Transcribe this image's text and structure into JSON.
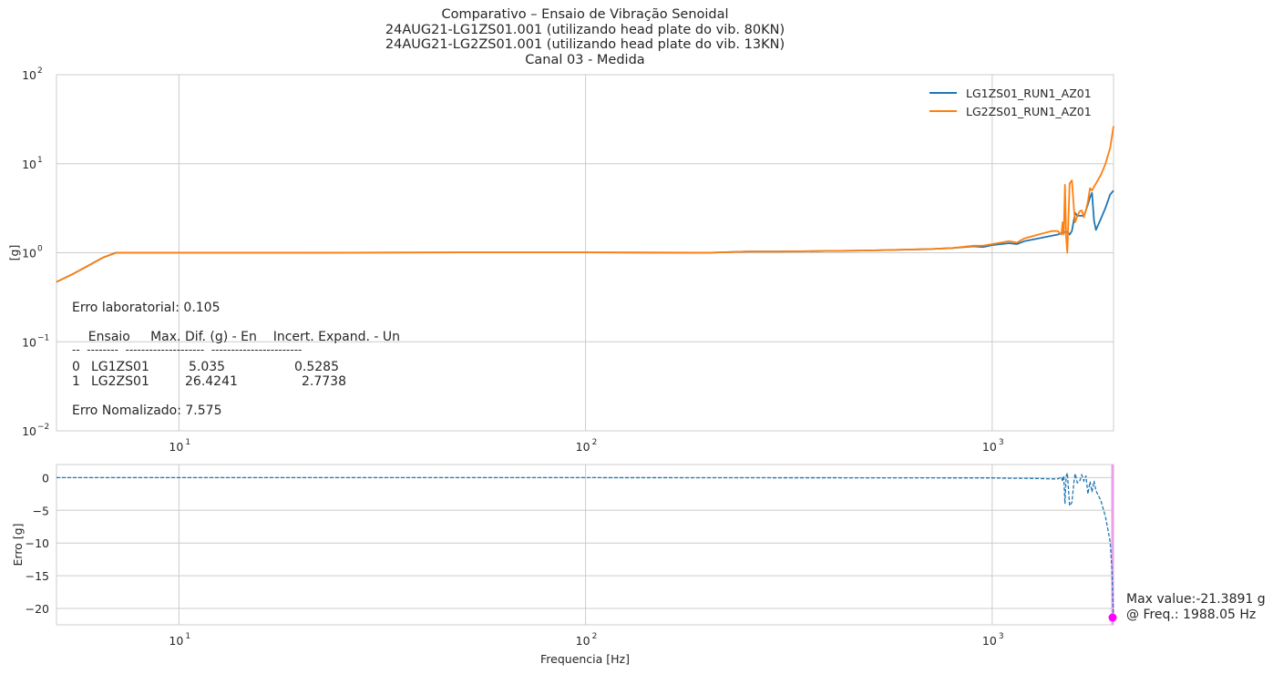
{
  "title_lines": [
    "Comparativo – Ensaio de Vibração Senoidal",
    "24AUG21-LG1ZS01.001 (utilizando head plate do vib. 80KN)",
    "24AUG21-LG2ZS01.001 (utilizando head plate do vib. 13KN)",
    "Canal 03 - Medida"
  ],
  "colors": {
    "series1": "#1f77b4",
    "series2": "#ff7f0e",
    "marker": "#ff00ff",
    "maxline": "#e8a0e8",
    "grid": "#cccccc",
    "axes": "#cccccc"
  },
  "annotations": {
    "lab_error": "Erro laboratorial: 0.105",
    "table_header": "    Ensaio     Max. Dif. (g) - En    Incert. Expand. - Un",
    "table_rule": "--  --------  --------------------  -----------------------",
    "rows": [
      {
        "idx": "0",
        "ensaio": "LG1ZS01",
        "max_dif": "5.035",
        "incert": "0.5285"
      },
      {
        "idx": "1",
        "ensaio": "LG2ZS01",
        "max_dif": "26.4241",
        "incert": "2.7738"
      }
    ],
    "norm_error": "Erro Nomalizado: 7.575"
  },
  "max_info": {
    "line1": "Max value:-21.3891 g",
    "line2": "@ Freq.: 1988.05 Hz"
  },
  "chart_data": [
    {
      "type": "line",
      "title": "Comparativo – Ensaio de Vibração Senoidal",
      "xlabel": "",
      "ylabel": "[g]",
      "xscale": "log",
      "yscale": "log",
      "xlim": [
        5,
        1988
      ],
      "ylim": [
        0.01,
        100
      ],
      "xticks": [
        {
          "value": 10,
          "label": "10",
          "exp": "1"
        },
        {
          "value": 100,
          "label": "10",
          "exp": "2"
        },
        {
          "value": 1000,
          "label": "10",
          "exp": "3"
        }
      ],
      "yticks": [
        {
          "value": 0.01,
          "label": "10",
          "exp": "−2"
        },
        {
          "value": 0.1,
          "label": "10",
          "exp": "−1"
        },
        {
          "value": 1,
          "label": "10",
          "exp": "0"
        },
        {
          "value": 10,
          "label": "10",
          "exp": "1"
        },
        {
          "value": 100,
          "label": "10",
          "exp": "2"
        }
      ],
      "grid": true,
      "legend_position": "top-right",
      "series": [
        {
          "name": "LG1ZS01_RUN1_AZ01",
          "x": [
            5,
            5.5,
            6,
            6.5,
            7,
            10,
            20,
            50,
            100,
            200,
            250,
            300,
            500,
            700,
            800,
            900,
            950,
            1000,
            1100,
            1150,
            1200,
            1300,
            1400,
            1450,
            1480,
            1500,
            1530,
            1550,
            1570,
            1600,
            1620,
            1650,
            1680,
            1700,
            1720,
            1740,
            1760,
            1780,
            1800,
            1850,
            1900,
            1950,
            1988
          ],
          "y": [
            0.47,
            0.58,
            0.72,
            0.88,
            1.0,
            1.0,
            1.0,
            1.01,
            1.01,
            1.0,
            1.03,
            1.03,
            1.06,
            1.1,
            1.13,
            1.18,
            1.16,
            1.22,
            1.28,
            1.25,
            1.35,
            1.45,
            1.55,
            1.6,
            1.65,
            1.7,
            1.72,
            1.6,
            1.75,
            2.8,
            2.6,
            2.6,
            2.6,
            3.0,
            3.5,
            4.2,
            4.7,
            2.3,
            1.8,
            2.4,
            3.2,
            4.5,
            5.0
          ]
        },
        {
          "name": "LG2ZS01_RUN1_AZ01",
          "x": [
            5,
            5.5,
            6,
            6.5,
            7,
            10,
            20,
            50,
            100,
            200,
            250,
            300,
            500,
            700,
            800,
            900,
            950,
            1000,
            1100,
            1150,
            1200,
            1300,
            1400,
            1450,
            1480,
            1490,
            1500,
            1510,
            1520,
            1530,
            1550,
            1570,
            1590,
            1600,
            1620,
            1640,
            1660,
            1680,
            1700,
            1720,
            1740,
            1760,
            1780,
            1800,
            1850,
            1900,
            1950,
            1988
          ],
          "y": [
            0.47,
            0.58,
            0.72,
            0.88,
            1.0,
            1.0,
            1.0,
            1.01,
            1.01,
            1.0,
            1.03,
            1.03,
            1.06,
            1.1,
            1.13,
            1.2,
            1.2,
            1.25,
            1.35,
            1.3,
            1.45,
            1.6,
            1.75,
            1.75,
            1.6,
            2.2,
            1.6,
            5.8,
            1.5,
            1.0,
            6.0,
            6.5,
            3.0,
            2.2,
            2.6,
            2.9,
            3.0,
            2.5,
            3.0,
            3.8,
            5.3,
            5.0,
            5.5,
            6.0,
            7.5,
            10.0,
            15.0,
            26.4
          ]
        }
      ]
    },
    {
      "type": "line",
      "xlabel": "Frequencia [Hz]",
      "ylabel": "Erro [g]",
      "xscale": "log",
      "xlim": [
        5,
        1988
      ],
      "ylim": [
        -22.5,
        2
      ],
      "xticks": [
        {
          "value": 10,
          "label": "10",
          "exp": "1"
        },
        {
          "value": 100,
          "label": "10",
          "exp": "2"
        },
        {
          "value": 1000,
          "label": "10",
          "exp": "3"
        }
      ],
      "yticks": [
        0,
        -5,
        -10,
        -15,
        -20
      ],
      "grid": true,
      "series": [
        {
          "name": "",
          "style": "dashed",
          "x": [
            5,
            100,
            1000,
            1100,
            1200,
            1300,
            1400,
            1450,
            1480,
            1490,
            1500,
            1510,
            1520,
            1530,
            1550,
            1570,
            1590,
            1600,
            1620,
            1640,
            1660,
            1680,
            1700,
            1720,
            1740,
            1760,
            1780,
            1800,
            1850,
            1900,
            1950,
            1970,
            1988
          ],
          "y": [
            0,
            0,
            -0.05,
            -0.1,
            -0.1,
            -0.15,
            -0.2,
            -0.2,
            0.1,
            -0.6,
            0.3,
            -4.0,
            0.2,
            0.7,
            -4.3,
            -3.8,
            -0.5,
            0.6,
            -0.8,
            -0.6,
            0.4,
            -0.5,
            0.3,
            -2.5,
            -0.6,
            -2.2,
            -0.5,
            -2.0,
            -3.5,
            -6.0,
            -9.8,
            -14.0,
            -21.3891
          ]
        }
      ],
      "max_point": {
        "x": 1988.05,
        "y": -21.3891
      }
    }
  ]
}
